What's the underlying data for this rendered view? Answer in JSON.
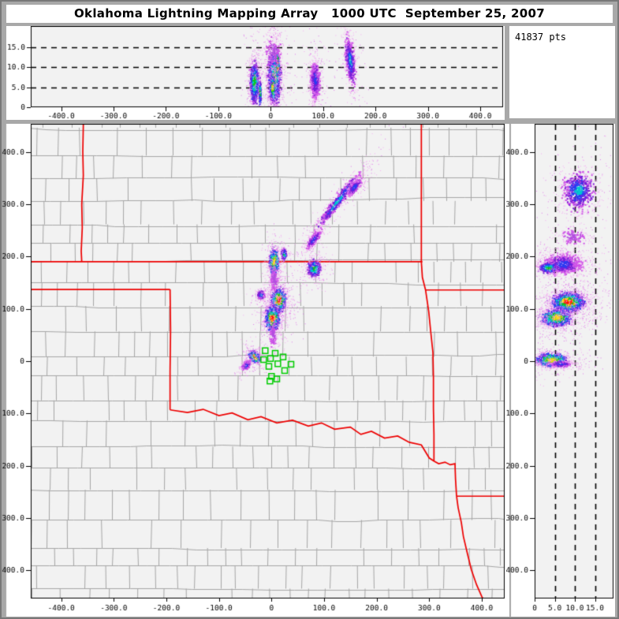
{
  "window": {
    "title": "Oklahoma Lightning Mapping Array   1000 UTC  September 25, 2007",
    "points_label": "41837 pts"
  },
  "colors": {
    "frame_gray": "#a8a8a8",
    "panel_white": "#ffffff",
    "plot_bg": "#f2f2f2",
    "county_line": "#a6a6a6",
    "state_border_red": "#ee0000",
    "station_green": "#00cc00",
    "axis_black": "#000000",
    "halo_pink": [
      "#f4abf2",
      "#df7cea"
    ],
    "ramps": {
      "red": [
        [
          0.45,
          "#ff1400"
        ],
        [
          0.6,
          "#ff9400"
        ],
        [
          0.78,
          "#ffe100"
        ],
        [
          1.02,
          "#12c41f"
        ],
        [
          1.28,
          "#00c8cf"
        ],
        [
          1.58,
          "#2b3df2"
        ],
        [
          1.95,
          "#7a1fd8"
        ],
        [
          2.5,
          "#cf53e8"
        ],
        [
          99,
          "#f4abf2"
        ]
      ],
      "yellow": [
        [
          0.5,
          "#ffe100"
        ],
        [
          0.72,
          "#9bdb00"
        ],
        [
          1.0,
          "#12c41f"
        ],
        [
          1.3,
          "#00c8cf"
        ],
        [
          1.6,
          "#2b3df2"
        ],
        [
          2.0,
          "#7a1fd8"
        ],
        [
          2.5,
          "#cf53e8"
        ],
        [
          99,
          "#f4abf2"
        ]
      ],
      "green": [
        [
          0.55,
          "#12c41f"
        ],
        [
          0.9,
          "#00c8cf"
        ],
        [
          1.3,
          "#2b3df2"
        ],
        [
          1.8,
          "#7a1fd8"
        ],
        [
          2.3,
          "#cf53e8"
        ],
        [
          99,
          "#f4abf2"
        ]
      ],
      "cyan": [
        [
          0.6,
          "#00c8cf"
        ],
        [
          1.0,
          "#2b3df2"
        ],
        [
          1.5,
          "#7a1fd8"
        ],
        [
          2.1,
          "#cf53e8"
        ],
        [
          99,
          "#f4abf2"
        ]
      ],
      "blue": [
        [
          0.6,
          "#2b3df2"
        ],
        [
          1.15,
          "#7a1fd8"
        ],
        [
          1.75,
          "#cf53e8"
        ],
        [
          99,
          "#f4abf2"
        ]
      ],
      "streak": [
        [
          0.4,
          "#00c8cf"
        ],
        [
          0.8,
          "#2b3df2"
        ],
        [
          1.3,
          "#7a1fd8"
        ],
        [
          1.9,
          "#cf53e8"
        ],
        [
          99,
          "#f4abf2"
        ]
      ],
      "purple": [
        [
          0.9,
          "#b44fe0"
        ],
        [
          1.7,
          "#cf53e8"
        ],
        [
          99,
          "#f4abf2"
        ]
      ]
    }
  },
  "chart_data": [
    {
      "id": "ew_altitude",
      "type": "scatter",
      "description": "East-West distance (km) vs altitude (km) projection",
      "x_range": [
        -458,
        442
      ],
      "alt_range": [
        0,
        20.2
      ],
      "guide_altitudes_km": [
        5,
        10,
        15
      ],
      "x_ticks": {
        "values": [
          -400,
          -300,
          -200,
          -100,
          0,
          100,
          200,
          300,
          400
        ],
        "labels": [
          "-400.0",
          "-300.0",
          "-200.0",
          "-100.0",
          "0",
          "100.0",
          "200.0",
          "300.0",
          "400.0"
        ]
      },
      "alt_ticks": {
        "values": [
          0,
          5,
          10,
          15
        ],
        "labels": [
          "0",
          "5.0",
          "10.0",
          "15.0"
        ]
      },
      "clusters": [
        {
          "cx": -31,
          "cy": 6,
          "sx": 4.5,
          "sy": 2.8,
          "a": 0,
          "n": 800,
          "p": "green"
        },
        {
          "cx": -20,
          "cy": 3.5,
          "sx": 1.2,
          "sy": 2.0,
          "a": 0,
          "n": 130,
          "p": "green"
        },
        {
          "cx": 7,
          "cy": 7.5,
          "sx": 6.5,
          "sy": 3.6,
          "a": 0,
          "n": 1500,
          "p": "green"
        },
        {
          "cx": 4,
          "cy": 4.8,
          "sx": 2.4,
          "sy": 1.5,
          "a": 0,
          "n": 400,
          "p": "yellow"
        },
        {
          "cx": 13,
          "cy": 10.5,
          "sx": 1.6,
          "sy": 1.8,
          "a": 0,
          "n": 260,
          "p": "red"
        },
        {
          "cx": 85,
          "cy": 6.5,
          "sx": 5,
          "sy": 2.6,
          "a": 0,
          "n": 650,
          "p": "blue"
        },
        {
          "cx": 152,
          "cy": 11.5,
          "sx": 6,
          "sy": 2.8,
          "a": 20,
          "n": 480,
          "p": "streak"
        },
        {
          "cx": 5,
          "cy": 13.5,
          "sx": 9,
          "sy": 2.2,
          "a": 0,
          "n": 140,
          "p": "purple"
        }
      ]
    },
    {
      "id": "plan_view",
      "type": "scatter",
      "description": "Plan view, east (km) vs north (km), Oklahoma region map",
      "x_range": [
        -458,
        442
      ],
      "y_range": [
        -452,
        452
      ],
      "x_ticks": {
        "values": [
          -400,
          -300,
          -200,
          -100,
          0,
          100,
          200,
          300,
          400
        ],
        "labels": [
          "-400.0",
          "-300.0",
          "-200.0",
          "-100.0",
          "0",
          "100.0",
          "200.0",
          "300.0",
          "400.0"
        ]
      },
      "y_ticks": {
        "values": [
          400,
          300,
          200,
          100,
          0,
          -100,
          -200,
          -300,
          -400
        ],
        "labels": [
          "400.0",
          "300.0",
          "200.0",
          "100.0",
          "0",
          "-100.0",
          "-200.0",
          "-300.0",
          "-400.0"
        ]
      },
      "stations_km": [
        [
          -12,
          20
        ],
        [
          7,
          15
        ],
        [
          22,
          8
        ],
        [
          -15,
          3
        ],
        [
          -2,
          5
        ],
        [
          12,
          -5
        ],
        [
          37,
          -6
        ],
        [
          -5,
          -10
        ],
        [
          25,
          -18
        ],
        [
          0,
          -29
        ],
        [
          10,
          -34
        ],
        [
          -3,
          -38
        ]
      ],
      "state_borders_km": {
        "ks_co": [
          [
            -358,
            452
          ],
          [
            -359,
            400
          ],
          [
            -358,
            355
          ],
          [
            -361,
            300
          ],
          [
            -360,
            255
          ],
          [
            -362,
            210
          ],
          [
            -361,
            190
          ]
        ],
        "ks_south": [
          [
            -462,
            190
          ],
          [
            287,
            190
          ]
        ],
        "panhandle_south": [
          [
            -462,
            137
          ],
          [
            -193,
            137
          ]
        ],
        "w100_meridian": [
          [
            -193,
            137
          ],
          [
            -192,
            60
          ],
          [
            -193,
            -20
          ],
          [
            -193,
            -93
          ]
        ],
        "red_river": [
          [
            -193,
            -93
          ],
          [
            -160,
            -98
          ],
          [
            -130,
            -92
          ],
          [
            -100,
            -104
          ],
          [
            -75,
            -99
          ],
          [
            -45,
            -112
          ],
          [
            -20,
            -106
          ],
          [
            10,
            -118
          ],
          [
            40,
            -113
          ],
          [
            70,
            -124
          ],
          [
            95,
            -118
          ],
          [
            120,
            -130
          ],
          [
            150,
            -126
          ],
          [
            170,
            -140
          ],
          [
            190,
            -134
          ],
          [
            215,
            -147
          ],
          [
            240,
            -143
          ],
          [
            262,
            -155
          ],
          [
            285,
            -160
          ],
          [
            300,
            -185
          ],
          [
            309,
            -191
          ]
        ],
        "ks_mo": [
          [
            285,
            452
          ],
          [
            285,
            190
          ]
        ],
        "ok_ar": [
          [
            285,
            190
          ],
          [
            287,
            160
          ],
          [
            293,
            136
          ],
          [
            299,
            95
          ],
          [
            303,
            55
          ],
          [
            307,
            17
          ],
          [
            308,
            -30
          ],
          [
            308,
            -90
          ],
          [
            309,
            -140
          ],
          [
            309,
            -191
          ]
        ],
        "mo_ar": [
          [
            293,
            136
          ],
          [
            452,
            136
          ]
        ],
        "river_east": [
          [
            309,
            -191
          ],
          [
            318,
            -196
          ],
          [
            330,
            -193
          ],
          [
            340,
            -198
          ],
          [
            349,
            -196
          ],
          [
            350,
            -225
          ],
          [
            352,
            -258
          ]
        ],
        "ar_la": [
          [
            352,
            -258
          ],
          [
            452,
            -258
          ]
        ],
        "tx_la": [
          [
            352,
            -258
          ],
          [
            355,
            -280
          ],
          [
            361,
            -308
          ],
          [
            365,
            -335
          ],
          [
            372,
            -365
          ],
          [
            380,
            -398
          ],
          [
            390,
            -427
          ],
          [
            400,
            -450
          ],
          [
            404,
            -456
          ]
        ]
      },
      "clusters": [
        {
          "cx": 5,
          "cy": 190,
          "sx": 4.5,
          "sy": 12,
          "a": 0,
          "n": 700,
          "p": "yellow"
        },
        {
          "cx": 24,
          "cy": 204,
          "sx": 3,
          "sy": 5.5,
          "a": 0,
          "n": 200,
          "p": "green"
        },
        {
          "cx": 82,
          "cy": 177,
          "sx": 6.5,
          "sy": 8.5,
          "a": 0,
          "n": 550,
          "p": "green"
        },
        {
          "cx": -20,
          "cy": 126,
          "sx": 4,
          "sy": 4.5,
          "a": 0,
          "n": 200,
          "p": "cyan"
        },
        {
          "cx": 14,
          "cy": 117,
          "sx": 7.5,
          "sy": 11,
          "a": 0,
          "n": 1200,
          "p": "red"
        },
        {
          "cx": 2,
          "cy": 81,
          "sx": 7,
          "sy": 12,
          "a": 0,
          "n": 1100,
          "p": "red"
        },
        {
          "cx": -32,
          "cy": 8,
          "sx": 6.5,
          "sy": 4.5,
          "a": 50,
          "n": 520,
          "p": "red"
        },
        {
          "cx": -48,
          "cy": -8,
          "sx": 3.5,
          "sy": 6.5,
          "a": 40,
          "n": 230,
          "p": "blue"
        },
        {
          "cx": 126,
          "cy": 305,
          "sx": 5,
          "sy": 38,
          "a": 38,
          "n": 520,
          "p": "streak"
        },
        {
          "cx": 158,
          "cy": 332,
          "sx": 4,
          "sy": 12,
          "a": 38,
          "n": 260,
          "p": "blue"
        },
        {
          "cx": 81,
          "cy": 233,
          "sx": 4,
          "sy": 12,
          "a": 35,
          "n": 280,
          "p": "blue"
        },
        {
          "cx": 5,
          "cy": 155,
          "sx": 4,
          "sy": 14,
          "a": 0,
          "n": 120,
          "p": "purple"
        },
        {
          "cx": 3,
          "cy": 52,
          "sx": 3,
          "sy": 14,
          "a": 0,
          "n": 110,
          "p": "purple"
        }
      ]
    },
    {
      "id": "ns_altitude",
      "type": "scatter",
      "description": "Altitude (km) vs North-South distance (km) projection",
      "alt_range": [
        0,
        19.4
      ],
      "y_range": [
        -452,
        452
      ],
      "guide_altitudes_km": [
        5,
        10,
        15
      ],
      "alt_ticks": {
        "values": [
          0,
          5,
          10,
          15
        ],
        "labels": [
          "0",
          "5.0",
          "10.0",
          "15.0"
        ]
      },
      "y_ticks": {
        "values": [
          400,
          300,
          200,
          100,
          0,
          -100,
          -200,
          -300,
          -400
        ],
        "labels": [
          "400.0",
          "300.0",
          "200.0",
          "100.0",
          "0",
          "-100.0",
          "-200.0",
          "-300.0",
          "-400.0"
        ]
      },
      "clusters": [
        {
          "cx": 4.2,
          "cy": 2,
          "sx": 1.9,
          "sy": 6.5,
          "a": 0,
          "n": 1000,
          "p": "yellow"
        },
        {
          "cx": 6.5,
          "cy": -6,
          "sx": 1.5,
          "sy": 3,
          "a": 0,
          "n": 220,
          "p": "blue"
        },
        {
          "cx": 5.5,
          "cy": 83,
          "sx": 1.8,
          "sy": 8,
          "a": 0,
          "n": 1500,
          "p": "yellow"
        },
        {
          "cx": 8.5,
          "cy": 113,
          "sx": 2,
          "sy": 9,
          "a": 0,
          "n": 1900,
          "p": "red"
        },
        {
          "cx": 7,
          "cy": 185,
          "sx": 2.6,
          "sy": 11,
          "a": 0,
          "n": 1050,
          "p": "blue"
        },
        {
          "cx": 3.5,
          "cy": 178,
          "sx": 1.3,
          "sy": 5,
          "a": 0,
          "n": 300,
          "p": "green"
        },
        {
          "cx": 9.5,
          "cy": 237,
          "sx": 2,
          "sy": 8,
          "a": 0,
          "n": 120,
          "p": "purple"
        },
        {
          "cx": 11,
          "cy": 325,
          "sx": 2.3,
          "sy": 22,
          "a": 0,
          "n": 620,
          "p": "streak"
        }
      ]
    }
  ]
}
